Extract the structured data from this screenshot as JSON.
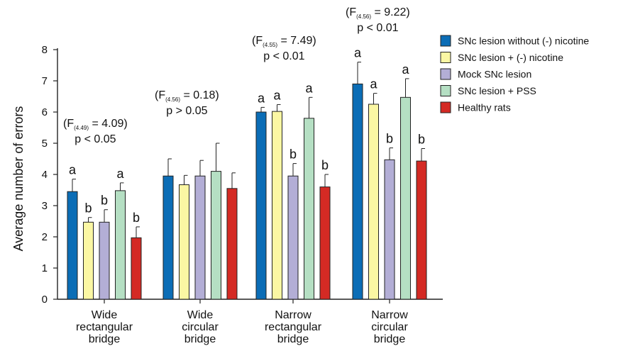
{
  "chart_data": {
    "type": "bar",
    "ylabel": "Average number of errors",
    "ylim": [
      0,
      8
    ],
    "yticks": [
      0,
      1,
      2,
      3,
      4,
      5,
      6,
      7,
      8
    ],
    "grid": false,
    "legend_position": "right",
    "categories": [
      [
        "Wide",
        "rectangular",
        "bridge"
      ],
      [
        "Wide",
        "circular",
        "bridge"
      ],
      [
        "Narrow",
        "rectangular",
        "bridge"
      ],
      [
        "Narrow",
        "circular",
        "bridge"
      ]
    ],
    "series": [
      {
        "name": "SNc lesion without (-) nicotine",
        "color": "#0b6db6",
        "values": [
          3.45,
          3.95,
          6.0,
          6.9
        ],
        "errors": [
          0.4,
          0.55,
          0.15,
          0.7
        ],
        "sig_labels": [
          "a",
          "",
          "a",
          "a"
        ]
      },
      {
        "name": "SNc lesion + (-) nicotine",
        "color": "#fbf7a3",
        "values": [
          2.47,
          3.67,
          6.02,
          6.25
        ],
        "errors": [
          0.15,
          0.3,
          0.22,
          0.35
        ],
        "sig_labels": [
          "b",
          "",
          "a",
          "a"
        ]
      },
      {
        "name": "Mock SNc lesion",
        "color": "#b3aed6",
        "values": [
          2.47,
          3.95,
          3.95,
          4.47
        ],
        "errors": [
          0.4,
          0.5,
          0.4,
          0.38
        ],
        "sig_labels": [
          "b",
          "",
          "b",
          "b"
        ]
      },
      {
        "name": "SNc lesion + PSS",
        "color": "#b5dfc3",
        "values": [
          3.48,
          4.1,
          5.8,
          6.47
        ],
        "errors": [
          0.25,
          0.9,
          0.67,
          0.6
        ],
        "sig_labels": [
          "a",
          "",
          "a",
          "a"
        ]
      },
      {
        "name": "Healthy rats",
        "color": "#d42a24",
        "values": [
          1.97,
          3.55,
          3.6,
          4.43
        ],
        "errors": [
          0.35,
          0.5,
          0.4,
          0.4
        ],
        "sig_labels": [
          "b",
          "",
          "b",
          "b"
        ]
      }
    ],
    "annotations": [
      {
        "f_prefix": "(F",
        "f_sub": "(4.49)",
        "f_value": " = 4.09)",
        "p_text": "p < 0.05"
      },
      {
        "f_prefix": "(F",
        "f_sub": "(4.56)",
        "f_value": " = 0.18)",
        "p_text": "p > 0.05"
      },
      {
        "f_prefix": "(F",
        "f_sub": "(4.55)",
        "f_value": " = 7.49)",
        "p_text": "p < 0.01"
      },
      {
        "f_prefix": "(F",
        "f_sub": "(4.56)",
        "f_value": " = 9.22)",
        "p_text": "p < 0.01"
      }
    ]
  }
}
